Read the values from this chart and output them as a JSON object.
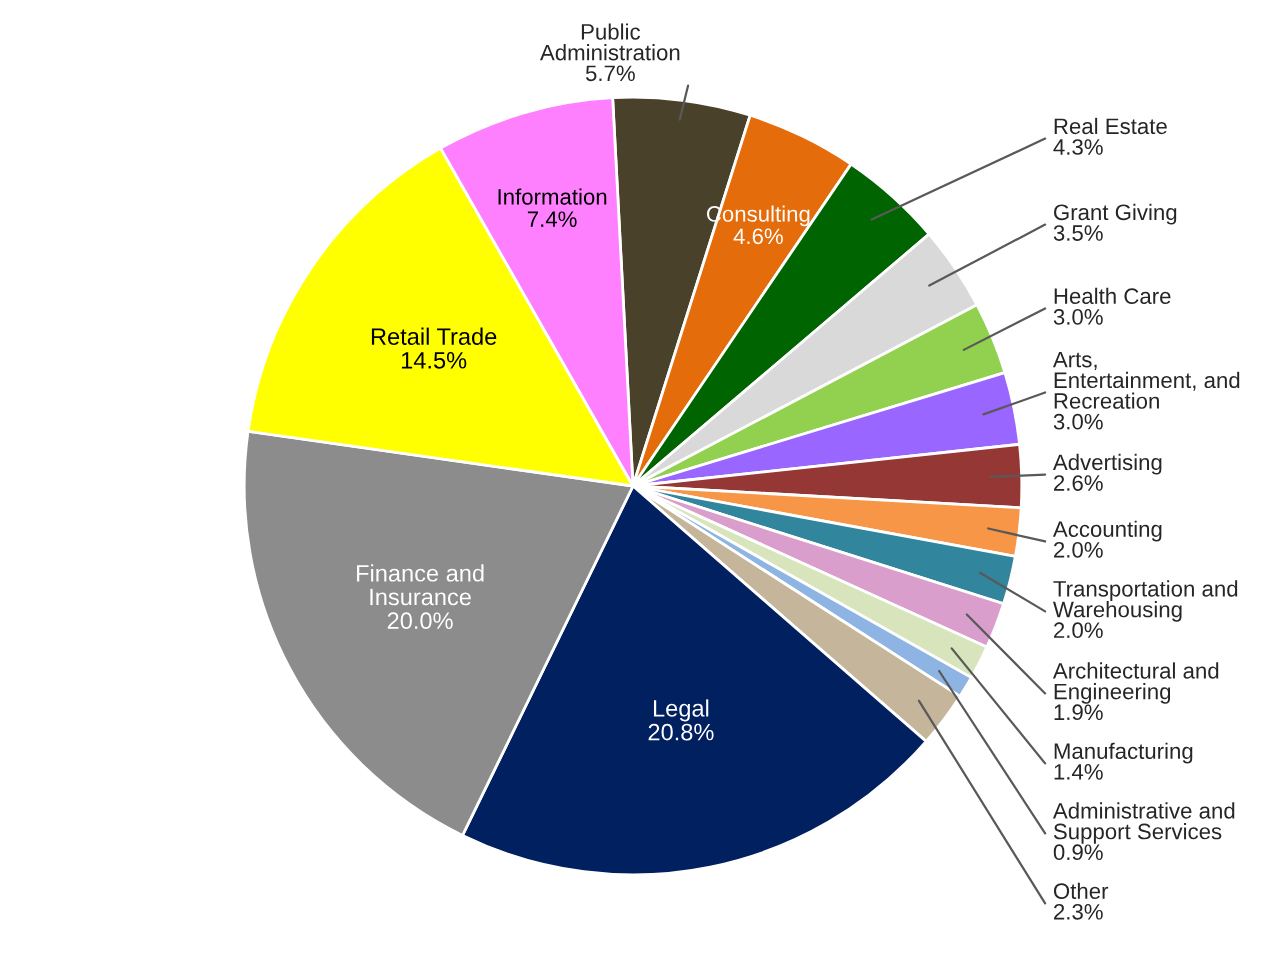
{
  "chart_data": {
    "type": "pie",
    "categories": [
      "Public\nAdministration",
      "Consulting",
      "Real Estate",
      "Grant Giving",
      "Health Care",
      "Arts,\nEntertainment, and\nRecreation",
      "Advertising",
      "Accounting",
      "Transportation and\nWarehousing",
      "Architectural and\nEngineering",
      "Manufacturing",
      "Administrative and\nSupport Services",
      "Other",
      "Legal",
      "Finance and\nInsurance",
      "Retail Trade",
      "Information"
    ],
    "values": [
      5.7,
      4.6,
      4.3,
      3.5,
      3.0,
      3.0,
      2.6,
      2.0,
      2.0,
      1.9,
      1.4,
      0.9,
      2.3,
      20.8,
      20.0,
      14.5,
      7.4
    ],
    "value_labels": [
      "5.7%",
      "4.6%",
      "4.3%",
      "3.5%",
      "3.0%",
      "3.0%",
      "2.6%",
      "2.0%",
      "2.0%",
      "1.9%",
      "1.4%",
      "0.9%",
      "2.3%",
      "20.8%",
      "20.0%",
      "14.5%",
      "7.4%"
    ],
    "colors": [
      "#4a412a",
      "#e46c0a",
      "#006400",
      "#d9d9d9",
      "#92d050",
      "#9966ff",
      "#953735",
      "#f79646",
      "#31859c",
      "#d99ecc",
      "#d8e4bc",
      "#8db4e2",
      "#c4b59b",
      "#002060",
      "#8c8c8c",
      "#ffff00",
      "#ff80ff"
    ]
  }
}
